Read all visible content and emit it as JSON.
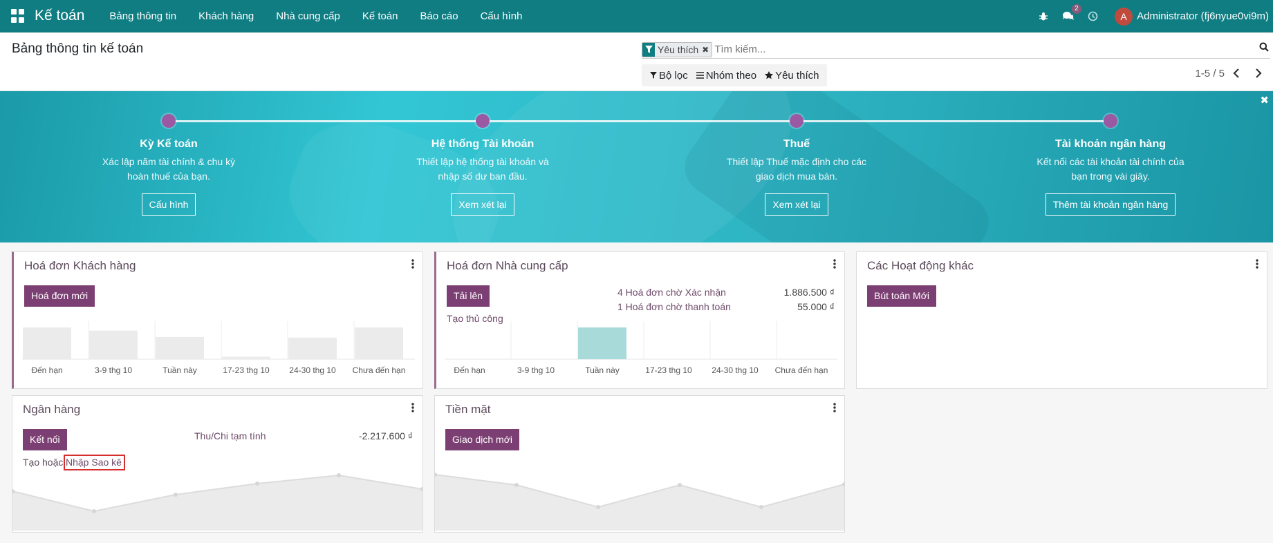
{
  "navbar": {
    "app_title": "Kế toán",
    "menu": [
      "Bảng thông tin",
      "Khách hàng",
      "Nhà cung cấp",
      "Kế toán",
      "Báo cáo",
      "Cấu hình"
    ],
    "messages_badge": "2",
    "avatar_letter": "A",
    "user": "Administrator (fj6nyue0vi9m)"
  },
  "control_panel": {
    "breadcrumb": "Bảng thông tin kế toán",
    "facet_label": "Yêu thích",
    "search_placeholder": "Tìm kiếm...",
    "filters_label": "Bộ lọc",
    "groupby_label": "Nhóm theo",
    "favorites_label": "Yêu thích",
    "pager": "1-5 / 5"
  },
  "onboarding": {
    "steps": [
      {
        "title": "Kỳ Kế toán",
        "desc": "Xác lập năm tài chính & chu kỳ hoàn thuế của bạn.",
        "button": "Cấu hình"
      },
      {
        "title": "Hệ thống Tài khoản",
        "desc": "Thiết lập hệ thống tài khoản và nhập số dư ban đầu.",
        "button": "Xem xét lại"
      },
      {
        "title": "Thuế",
        "desc": "Thiết lập Thuế mặc định cho các giao dịch mua bán.",
        "button": "Xem xét lại"
      },
      {
        "title": "Tài khoản ngân hàng",
        "desc": "Kết nối các tài khoản tài chính của bạn trong vài giây.",
        "button": "Thêm tài khoản ngân hàng"
      }
    ]
  },
  "cards": {
    "customer_invoices": {
      "title": "Hoá đơn Khách hàng",
      "button": "Hoá đơn mới",
      "chart_labels": [
        "Đến hạn",
        "3-9 thg 10",
        "Tuần này",
        "17-23 thg 10",
        "24-30 thg 10",
        "Chưa đến hạn"
      ],
      "chart_values": [
        1.0,
        0.9,
        0.7,
        0.08,
        0.68,
        1.0
      ]
    },
    "vendor_bills": {
      "title": "Hoá đơn Nhà cung cấp",
      "button": "Tải lên",
      "link": "Tạo thủ công",
      "rows": [
        {
          "label": "4 Hoá đơn chờ Xác nhận",
          "amount": "1.886.500 ₫"
        },
        {
          "label": "1 Hoá đơn chờ thanh toán",
          "amount": "55.000 ₫"
        }
      ],
      "chart_labels": [
        "Đến hạn",
        "3-9 thg 10",
        "Tuần này",
        "17-23 thg 10",
        "24-30 thg 10",
        "Chưa đến hạn"
      ],
      "chart_values": [
        0,
        0,
        1.0,
        0,
        0,
        0
      ],
      "highlight_color": "#a9dada"
    },
    "other_ops": {
      "title": "Các Hoạt động khác",
      "button": "Bút toán Mới"
    },
    "bank": {
      "title": "Ngân hàng",
      "button": "Kết nối",
      "row_label": "Thu/Chi tạm tính",
      "row_amount": "-2.217.600 ₫",
      "link_prefix": "Tạo hoặc",
      "link": "Nhập Sao kê"
    },
    "cash": {
      "title": "Tiền mặt",
      "button": "Giao dịch mới"
    }
  },
  "colors": {
    "navbar": "#0f7d82",
    "primary": "#7c3f73",
    "highlight": "#d62d2d"
  }
}
